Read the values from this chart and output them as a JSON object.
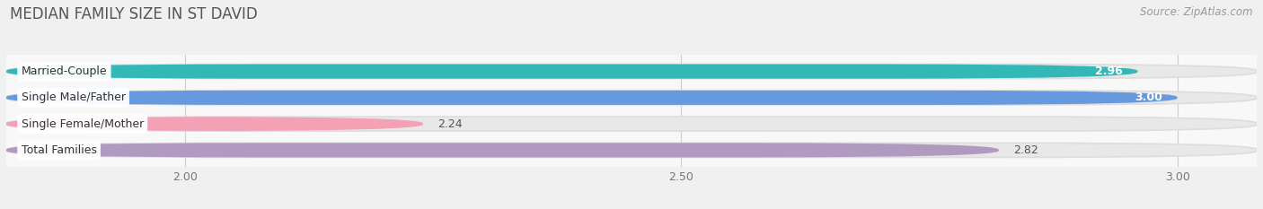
{
  "title": "MEDIAN FAMILY SIZE IN ST DAVID",
  "source": "Source: ZipAtlas.com",
  "categories": [
    "Married-Couple",
    "Single Male/Father",
    "Single Female/Mother",
    "Total Families"
  ],
  "values": [
    2.96,
    3.0,
    2.24,
    2.82
  ],
  "bar_colors": [
    "#33b8b8",
    "#6699dd",
    "#f4a0b5",
    "#b09abf"
  ],
  "track_color": "#e8e8e8",
  "xmin": 1.82,
  "xmax": 3.08,
  "xticks": [
    2.0,
    2.5,
    3.0
  ],
  "bar_height": 0.55,
  "background_color": "#f0f0f0",
  "plot_bg_color": "#f8f8f8",
  "title_fontsize": 12,
  "source_fontsize": 8.5,
  "label_fontsize": 9,
  "value_fontsize": 9,
  "value_inside_threshold": 2.85
}
